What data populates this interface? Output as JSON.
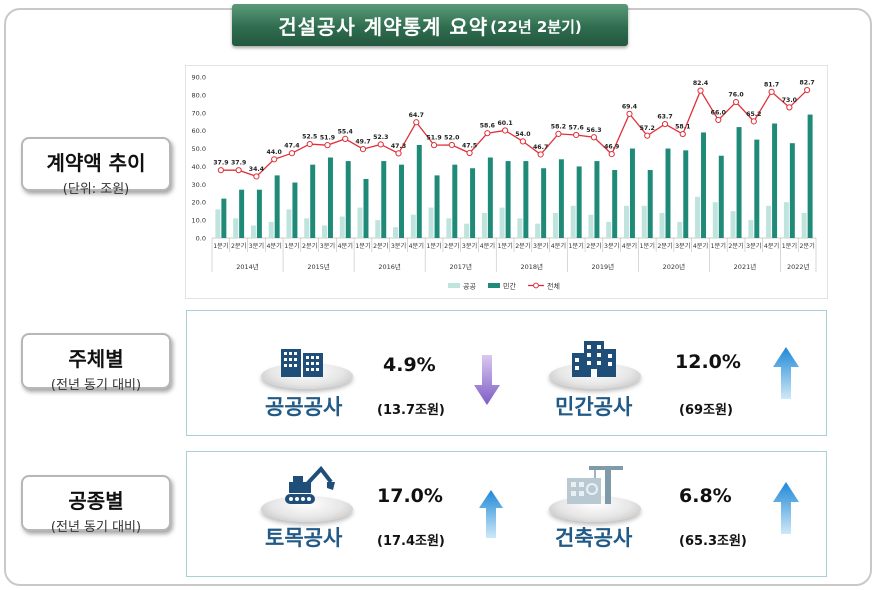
{
  "title": {
    "main": "건설공사 계약통계 요약",
    "sub": "(22년 2분기)"
  },
  "sections": {
    "trend": {
      "label": "계약액 추이",
      "sublabel": "(단위: 조원)"
    },
    "by_entity": {
      "label": "주체별",
      "sublabel": "(전년 동기 대비)"
    },
    "by_type": {
      "label": "공종별",
      "sublabel": "(전년 동기 대비)"
    }
  },
  "by_entity": {
    "public": {
      "name": "공공공사",
      "pct": "4.9%",
      "amount": "(13.7조원)",
      "direction": "down"
    },
    "private": {
      "name": "민간공사",
      "pct": "12.0%",
      "amount": "(69조원)",
      "direction": "up"
    }
  },
  "by_type": {
    "civil": {
      "name": "토목공사",
      "pct": "17.0%",
      "amount": "(17.4조원)",
      "direction": "up"
    },
    "building": {
      "name": "건축공사",
      "pct": "6.8%",
      "amount": "(65.3조원)",
      "direction": "up"
    }
  },
  "chart_data": {
    "type": "bar",
    "categories": [
      "1분기",
      "2분기",
      "3분기",
      "4분기",
      "1분기",
      "2분기",
      "3분기",
      "4분기",
      "1분기",
      "2분기",
      "3분기",
      "4분기",
      "1분기",
      "2분기",
      "3분기",
      "4분기",
      "1분기",
      "2분기",
      "3분기",
      "4분기",
      "1분기",
      "2분기",
      "3분기",
      "4분기",
      "1분기",
      "2분기",
      "3분기",
      "4분기",
      "1분기",
      "2분기",
      "3분기",
      "4분기",
      "1분기",
      "2분기"
    ],
    "years": [
      {
        "label": "2014년",
        "count": 4
      },
      {
        "label": "2015년",
        "count": 4
      },
      {
        "label": "2016년",
        "count": 4
      },
      {
        "label": "2017년",
        "count": 4
      },
      {
        "label": "2018년",
        "count": 4
      },
      {
        "label": "2019년",
        "count": 4
      },
      {
        "label": "2020년",
        "count": 4
      },
      {
        "label": "2021년",
        "count": 4
      },
      {
        "label": "2022년",
        "count": 2
      }
    ],
    "series": [
      {
        "name": "공공",
        "kind": "bar",
        "color": "#bfe3dd",
        "values": [
          16,
          11,
          7,
          9,
          16,
          11,
          7,
          12,
          17,
          10,
          6,
          13,
          17,
          11,
          8,
          14,
          17,
          11,
          8,
          14,
          18,
          13,
          9,
          18,
          18,
          14,
          9,
          23,
          20,
          15,
          10,
          18,
          20,
          14
        ]
      },
      {
        "name": "민간",
        "kind": "bar",
        "color": "#1f8a78",
        "values": [
          22,
          27,
          27,
          35,
          31,
          41,
          45,
          43,
          33,
          43,
          41,
          52,
          35,
          41,
          39,
          45,
          43,
          43,
          39,
          44,
          40,
          43,
          38,
          50,
          38,
          50,
          49,
          59,
          46,
          62,
          55,
          64,
          53,
          69
        ]
      },
      {
        "name": "전체",
        "kind": "line",
        "color": "#e0313a",
        "values": [
          37.9,
          37.9,
          34.4,
          44.0,
          47.4,
          52.5,
          51.9,
          55.4,
          49.7,
          52.3,
          47.3,
          64.7,
          51.9,
          52.0,
          47.5,
          58.6,
          60.1,
          54.0,
          46.7,
          58.2,
          57.6,
          56.3,
          46.9,
          69.4,
          57.2,
          63.7,
          58.1,
          82.4,
          66.0,
          76.0,
          65.2,
          81.7,
          73.0,
          82.7
        ]
      }
    ],
    "y_ticks": [
      "0.0",
      "10.0",
      "20.0",
      "30.0",
      "40.0",
      "50.0",
      "60.0",
      "70.0",
      "80.0",
      "90.0"
    ],
    "ylim": [
      0,
      90
    ],
    "grid": false,
    "legend": "bottom-center"
  }
}
